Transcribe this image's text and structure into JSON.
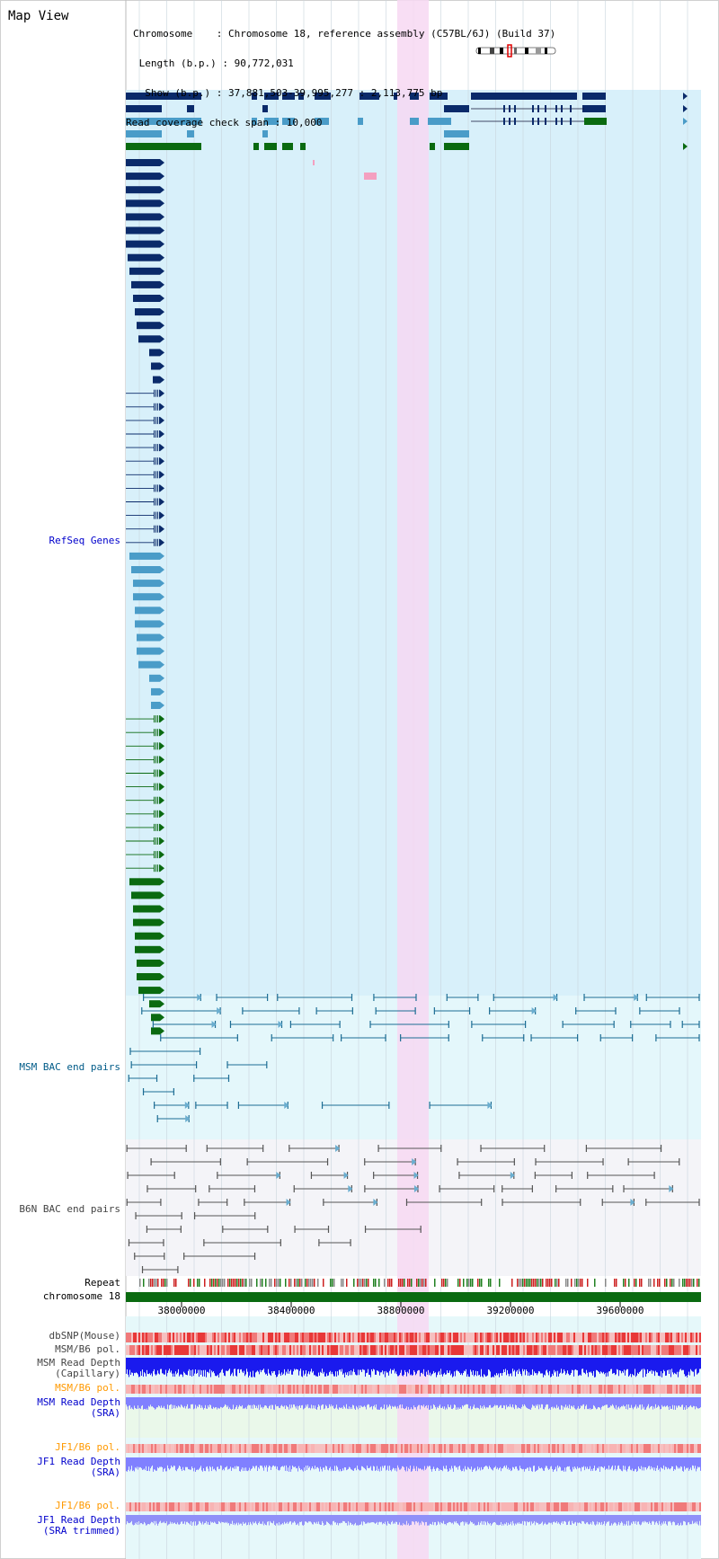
{
  "title": "Map View",
  "header": {
    "lines": [
      "Chromosome    : Chromosome 18, reference assembly (C57BL/6J) (Build 37)",
      " Length (b.p.) : 90,772,031",
      "  Show (b.p.) : 37,881,503-39,995,277 : 2,113,775 bp",
      "Read coverage check span : 10,000"
    ]
  },
  "tracks": {
    "refseq": "RefSeq Genes",
    "msm_bac": "MSM BAC end pairs",
    "b6n_bac": "B6N BAC end pairs",
    "repeat": "Repeat",
    "chromosome": "chromosome 18",
    "dbsnp": "dbSNP(Mouse)",
    "msm_b6_pol_1": "MSM/B6 pol.",
    "msm_depth_cap": [
      "MSM Read Depth",
      "(Capillary)"
    ],
    "msm_b6_pol_2": "MSM/B6 pol.",
    "msm_depth_sra": [
      "MSM Read Depth",
      "(SRA)"
    ],
    "jf1_b6_pol_1": "JF1/B6 pol.",
    "jf1_depth_sra": [
      "JF1 Read Depth",
      "(SRA)"
    ],
    "jf1_b6_pol_2": "JF1/B6 pol.",
    "jf1_depth_trim": [
      "JF1 Read Depth",
      "(SRA trimmed)"
    ]
  },
  "axis": {
    "ticks": [
      "38000000",
      "38400000",
      "38800000",
      "39200000",
      "39600000"
    ]
  },
  "colors": {
    "refseq_dark": "#0a2a6a",
    "refseq_light": "#4a9cc8",
    "refseq_green": "#0a6a10",
    "highlight": "#f7d8f2",
    "panel_light_blue": "#d8f0fa",
    "chromosome_bar": "#0a6a10",
    "snp_red": "#ee3030",
    "depth_blue": "#1a1aee",
    "depth_light_blue": "#8080ff"
  }
}
